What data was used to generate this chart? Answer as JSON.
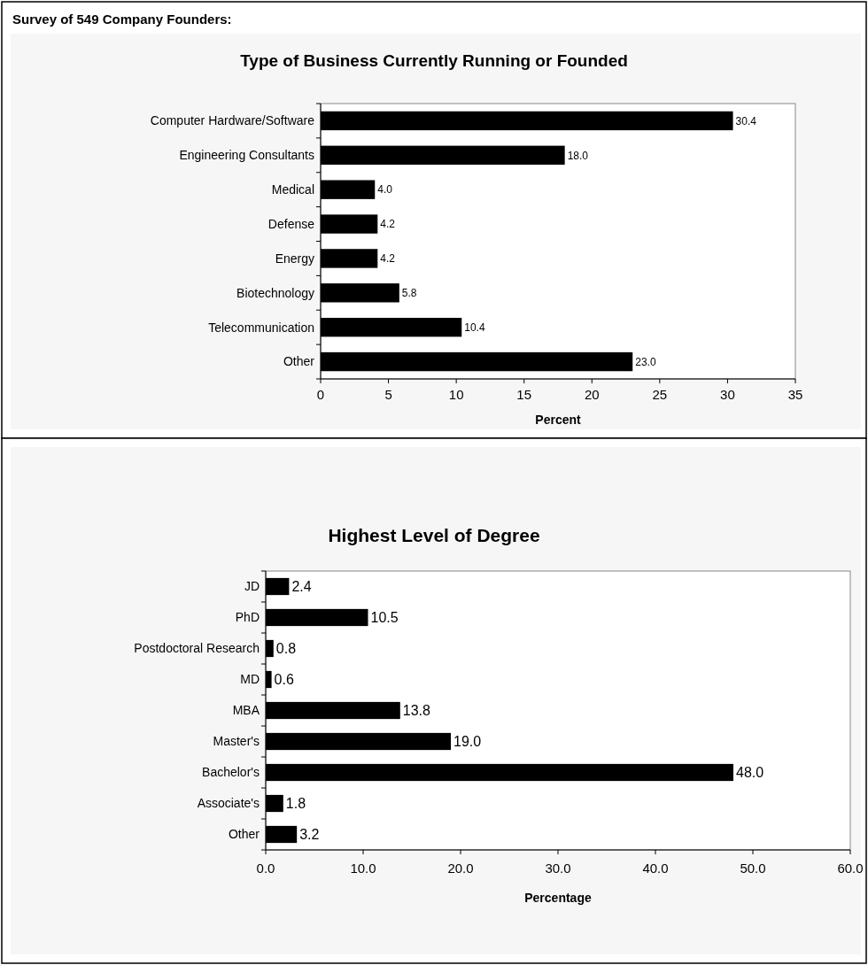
{
  "chart_data": [
    {
      "type": "bar",
      "orientation": "horizontal",
      "annotations": [
        "Survey of 549 Company Founders:"
      ],
      "title": "Type of Business Currently Running or Founded",
      "xlabel": "Percent",
      "categories": [
        "Computer Hardware/Software",
        "Engineering Consultants",
        "Medical",
        "Defense",
        "Energy",
        "Biotechnology",
        "Telecommunication",
        "Other"
      ],
      "values": [
        30.4,
        18.0,
        4.0,
        4.2,
        4.2,
        5.8,
        10.4,
        23.0
      ],
      "value_labels": [
        "30.4",
        "18.0",
        "4.0",
        "4.2",
        "4.2",
        "5.8",
        "10.4",
        "23.0"
      ],
      "color": "#000000",
      "xlim": [
        0,
        35
      ],
      "xticks": [
        0,
        5,
        10,
        15,
        20,
        25,
        30,
        35
      ]
    },
    {
      "type": "bar",
      "orientation": "horizontal",
      "title": "Highest Level of Degree",
      "xlabel": "Percentage",
      "categories": [
        "JD",
        "PhD",
        "Postdoctoral Research",
        "MD",
        "MBA",
        "Master's",
        "Bachelor's",
        "Associate's",
        "Other"
      ],
      "values": [
        2.4,
        10.5,
        0.8,
        0.6,
        13.8,
        19.0,
        48.0,
        1.8,
        3.2
      ],
      "value_labels": [
        "2.4",
        "10.5",
        "0.8",
        "0.6",
        "13.8",
        "19.0",
        "48.0",
        "1.8",
        "3.2"
      ],
      "color": "#000000",
      "xlim": [
        0,
        60
      ],
      "xticks": [
        {
          "value": 0,
          "label": "0.0"
        },
        {
          "value": 10,
          "label": "10.0"
        },
        {
          "value": 20,
          "label": "20.0"
        },
        {
          "value": 30,
          "label": "30.0"
        },
        {
          "value": 40,
          "label": "40.0"
        },
        {
          "value": 50,
          "label": "50.0"
        },
        {
          "value": 60,
          "label": "60.0"
        }
      ]
    }
  ]
}
